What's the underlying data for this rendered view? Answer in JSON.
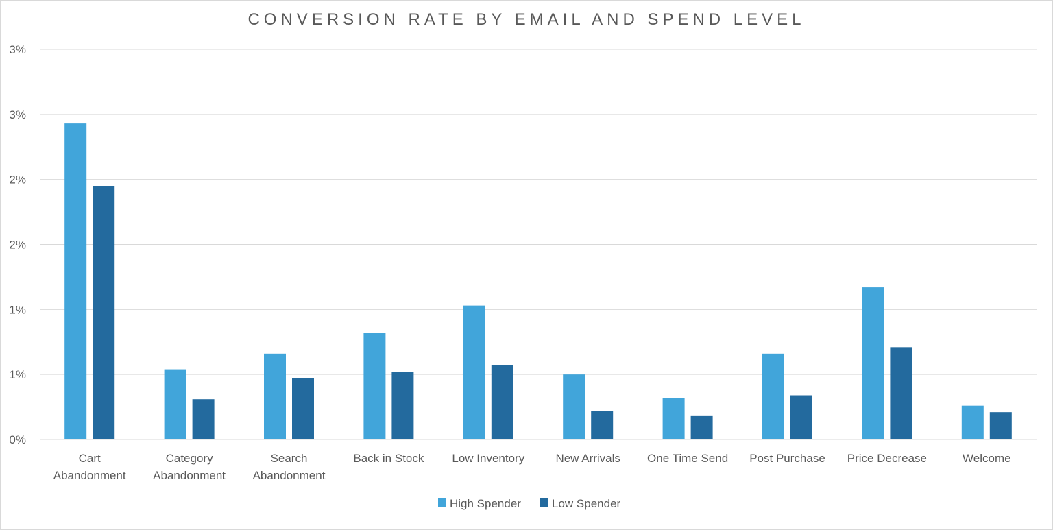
{
  "chart_data": {
    "type": "bar",
    "title": "CONVERSION RATE BY EMAIL AND SPEND LEVEL",
    "xlabel": "",
    "ylabel": "",
    "ylim": [
      0,
      3.0
    ],
    "yticks": [
      0,
      0.5,
      1.0,
      1.5,
      2.0,
      2.5,
      3.0
    ],
    "ytick_labels": [
      "0%",
      "1%",
      "1%",
      "2%",
      "2%",
      "3%",
      "3%"
    ],
    "grid": true,
    "legend_position": "bottom-center",
    "categories": [
      [
        "Cart",
        "Abandonment"
      ],
      [
        "Category",
        "Abandonment"
      ],
      [
        "Search",
        "Abandonment"
      ],
      [
        "Back in Stock"
      ],
      [
        "Low Inventory"
      ],
      [
        "New Arrivals"
      ],
      [
        "One Time Send"
      ],
      [
        "Post Purchase"
      ],
      [
        "Price Decrease"
      ],
      [
        "Welcome"
      ]
    ],
    "series": [
      {
        "name": "High Spender",
        "color": "#41A5DA",
        "values": [
          2.43,
          0.54,
          0.66,
          0.82,
          1.03,
          0.5,
          0.32,
          0.66,
          1.17,
          0.26
        ]
      },
      {
        "name": "Low Spender",
        "color": "#236A9E",
        "values": [
          1.95,
          0.31,
          0.47,
          0.52,
          0.57,
          0.22,
          0.18,
          0.34,
          0.71,
          0.21
        ]
      }
    ]
  }
}
